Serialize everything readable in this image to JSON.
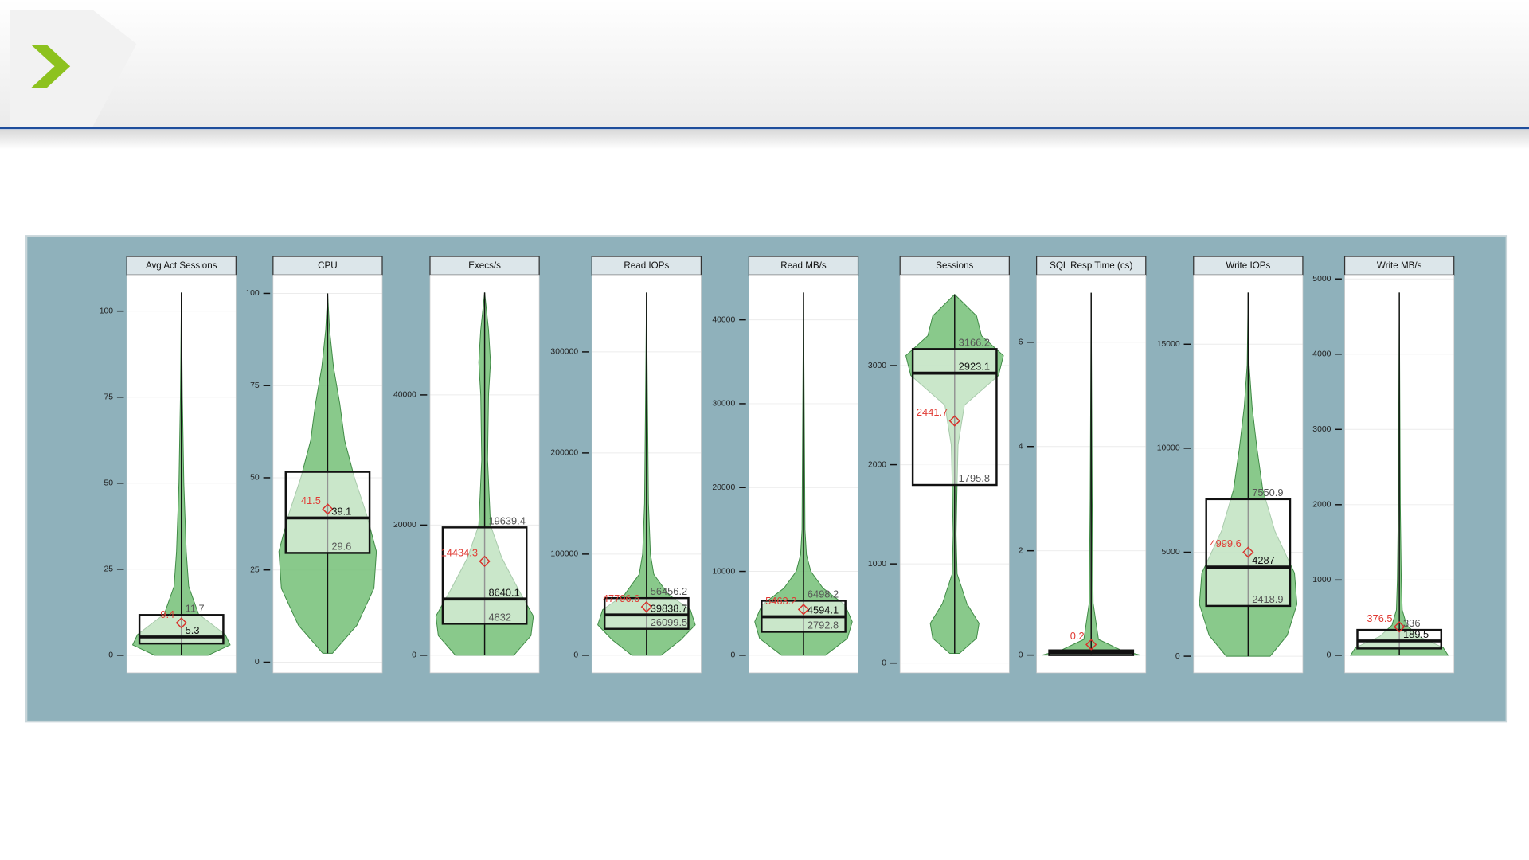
{
  "chart_data": [
    {
      "type": "violin",
      "title": "Avg Act Sessions",
      "color": "#74c077",
      "ylim": [
        -5.1,
        110.5
      ],
      "yticks": [
        0,
        25,
        50,
        75,
        100
      ],
      "box": {
        "q1": 3.4,
        "median": 5.3,
        "q3": 11.7,
        "mean": 9.4,
        "low": 0,
        "high": 105.4
      },
      "labeled": [
        "mean",
        "median",
        "q3"
      ],
      "violin": {
        "y": [
          0,
          3,
          6,
          12,
          20,
          30,
          50,
          75,
          105.4
        ],
        "width": [
          0.55,
          1,
          0.9,
          0.35,
          0.15,
          0.1,
          0.05,
          0.02,
          0
        ]
      }
    },
    {
      "type": "violin",
      "title": "CPU",
      "color": "#74c077",
      "ylim": [
        -2.9,
        105
      ],
      "yticks": [
        0,
        25,
        50,
        75,
        100
      ],
      "box": {
        "q1": 29.6,
        "median": 39.1,
        "q3": 51.6,
        "mean": 41.5,
        "low": 2.4,
        "high": 100
      },
      "labeled": [
        "mean",
        "median",
        "q1"
      ],
      "violin": {
        "y": [
          2.4,
          10,
          20,
          30,
          40,
          50,
          60,
          70,
          80,
          90,
          100
        ],
        "width": [
          0.1,
          0.6,
          0.95,
          1,
          0.8,
          0.55,
          0.35,
          0.25,
          0.12,
          0.04,
          0
        ]
      }
    },
    {
      "type": "violin",
      "title": "Execs/s",
      "color": "#74c077",
      "ylim": [
        -2697,
        58427
      ],
      "yticks": [
        0,
        20000,
        40000
      ],
      "box": {
        "q1": 4832,
        "median": 8640.1,
        "q3": 19639.4,
        "mean": 14434.3,
        "low": 0,
        "high": 55730
      },
      "labeled": [
        "mean",
        "median",
        "q1",
        "q3"
      ],
      "violin": {
        "y": [
          0,
          3000,
          6000,
          10000,
          15000,
          20000,
          30000,
          40000,
          45000,
          50000,
          55730
        ],
        "width": [
          0.6,
          0.95,
          1,
          0.7,
          0.35,
          0.12,
          0.06,
          0.08,
          0.12,
          0.08,
          0
        ]
      }
    },
    {
      "type": "violin",
      "title": "Read IOPs",
      "color": "#74c077",
      "ylim": [
        -17358,
        376085
      ],
      "yticks": [
        0,
        100000,
        200000,
        300000
      ],
      "box": {
        "q1": 26099.5,
        "median": 39838.7,
        "q3": 56456.2,
        "mean": 47796.6,
        "low": 0,
        "high": 358700
      },
      "labeled": [
        "mean",
        "median",
        "q1",
        "q3"
      ],
      "violin": {
        "y": [
          0,
          15000,
          30000,
          45000,
          60000,
          80000,
          100000,
          150000,
          250000,
          358700
        ],
        "width": [
          0.3,
          0.7,
          1,
          0.9,
          0.45,
          0.15,
          0.08,
          0.04,
          0.02,
          0
        ]
      }
    },
    {
      "type": "violin",
      "title": "Read MB/s",
      "color": "#74c077",
      "ylim": [
        -2093,
        45349
      ],
      "yticks": [
        0,
        10000,
        20000,
        30000,
        40000
      ],
      "box": {
        "q1": 2792.8,
        "median": 4594.1,
        "q3": 6498.2,
        "mean": 5463.2,
        "low": 0,
        "high": 43256
      },
      "labeled": [
        "mean",
        "median",
        "q1",
        "q3"
      ],
      "violin": {
        "y": [
          0,
          2000,
          4000,
          6000,
          8000,
          10000,
          12000,
          15000,
          25000,
          43256
        ],
        "width": [
          0.45,
          0.9,
          1,
          0.85,
          0.4,
          0.15,
          0.06,
          0.03,
          0.02,
          0
        ]
      }
    },
    {
      "type": "violin",
      "title": "Sessions",
      "color": "#74c077",
      "ylim": [
        -98,
        3913
      ],
      "yticks": [
        0,
        1000,
        2000,
        3000
      ],
      "box": {
        "q1": 1795.8,
        "median": 2923.1,
        "q3": 3166.2,
        "mean": 2441.7,
        "low": 98,
        "high": 3717
      },
      "labeled": [
        "mean",
        "median",
        "q1",
        "q3"
      ],
      "violin": {
        "y": [
          98,
          250,
          400,
          600,
          900,
          1300,
          1800,
          2200,
          2600,
          2900,
          3100,
          3300,
          3500,
          3717
        ],
        "width": [
          0.1,
          0.45,
          0.5,
          0.25,
          0.05,
          0.03,
          0.05,
          0.07,
          0.2,
          0.9,
          1,
          0.55,
          0.45,
          0
        ]
      }
    },
    {
      "type": "violin",
      "title": "SQL Resp Time (cs)",
      "color": "#74c077",
      "ylim": [
        -0.34,
        7.29
      ],
      "yticks": [
        0,
        2,
        4,
        6
      ],
      "box": {
        "q1": 0,
        "median": 0.05,
        "q3": 0.09,
        "mean": 0.2,
        "low": 0,
        "high": 6.95
      },
      "labeled": [
        "mean"
      ],
      "violin": {
        "y": [
          0,
          0.1,
          0.3,
          1,
          3,
          6.95
        ],
        "width": [
          1,
          0.6,
          0.15,
          0.04,
          0.02,
          0
        ]
      }
    },
    {
      "type": "violin",
      "title": "Write IOPs",
      "color": "#74c077",
      "ylim": [
        -797,
        18330
      ],
      "yticks": [
        0,
        5000,
        10000,
        15000
      ],
      "box": {
        "q1": 2418.9,
        "median": 4287,
        "q3": 7550.9,
        "mean": 4999.6,
        "low": 0,
        "high": 17487
      },
      "labeled": [
        "mean",
        "median",
        "q1",
        "q3"
      ],
      "violin": {
        "y": [
          0,
          1000,
          2500,
          4000,
          5000,
          6000,
          8000,
          10000,
          12000,
          14000,
          17487
        ],
        "width": [
          0.45,
          0.8,
          1,
          0.95,
          0.75,
          0.55,
          0.3,
          0.18,
          0.08,
          0.02,
          0
        ]
      }
    },
    {
      "type": "violin",
      "title": "Write MB/s",
      "color": "#74c077",
      "ylim": [
        -233,
        5052
      ],
      "yticks": [
        0,
        1000,
        2000,
        3000,
        4000,
        5000
      ],
      "box": {
        "q1": 90,
        "median": 189.5,
        "q3": 336,
        "mean": 376.5,
        "low": 0,
        "high": 4819
      },
      "labeled": [
        "mean",
        "median",
        "q3"
      ],
      "violin": {
        "y": [
          0,
          100,
          250,
          400,
          600,
          1000,
          2000,
          4819
        ],
        "width": [
          1,
          0.9,
          0.4,
          0.15,
          0.06,
          0.04,
          0.02,
          0
        ]
      }
    }
  ]
}
